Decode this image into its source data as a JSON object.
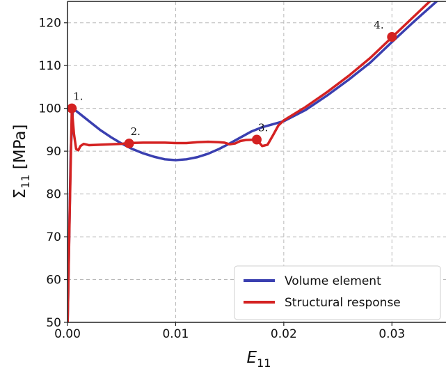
{
  "chart_data": {
    "type": "line",
    "xlabel": "E",
    "xlabel_sub": "11",
    "ylabel": "Σ",
    "ylabel_sub": "11",
    "ylabel_unit": " [MPa]",
    "xlim": [
      0.0,
      0.035
    ],
    "ylim": [
      50,
      125
    ],
    "xticks": [
      0.0,
      0.01,
      0.02,
      0.03
    ],
    "xtick_labels": [
      "0.00",
      "0.01",
      "0.02",
      "0.03"
    ],
    "yticks": [
      50,
      60,
      70,
      80,
      90,
      100,
      110,
      120
    ],
    "ytick_labels": [
      "50",
      "60",
      "70",
      "80",
      "90",
      "100",
      "110",
      "120"
    ],
    "grid": true,
    "legend_position": "lower-right",
    "series": [
      {
        "name": "Volume element",
        "color": "#3a3fb0",
        "x": [
          0.0,
          0.0003,
          0.0005,
          0.001,
          0.002,
          0.003,
          0.004,
          0.005,
          0.006,
          0.007,
          0.008,
          0.009,
          0.01,
          0.011,
          0.012,
          0.013,
          0.014,
          0.015,
          0.016,
          0.017,
          0.018,
          0.019,
          0.02,
          0.022,
          0.024,
          0.026,
          0.028,
          0.03,
          0.032,
          0.034,
          0.035
        ],
        "y": [
          48,
          90,
          100,
          99.0,
          97.0,
          95.0,
          93.3,
          91.8,
          90.5,
          89.5,
          88.7,
          88.1,
          87.9,
          88.1,
          88.6,
          89.4,
          90.5,
          91.8,
          93.2,
          94.6,
          95.6,
          96.3,
          97.0,
          99.6,
          103.0,
          106.7,
          110.7,
          115.5,
          120.2,
          124.7,
          127.0
        ]
      },
      {
        "name": "Structural response",
        "color": "#d42222",
        "x": [
          0.0,
          0.0002,
          0.0004,
          0.0006,
          0.0008,
          0.001,
          0.0012,
          0.0015,
          0.002,
          0.003,
          0.004,
          0.005,
          0.0055,
          0.007,
          0.009,
          0.01,
          0.011,
          0.012,
          0.013,
          0.014,
          0.0145,
          0.015,
          0.0155,
          0.016,
          0.0165,
          0.0175,
          0.018,
          0.0185,
          0.019,
          0.0195,
          0.02,
          0.022,
          0.024,
          0.026,
          0.028,
          0.03,
          0.032,
          0.034,
          0.035
        ],
        "y": [
          48,
          75,
          100,
          94,
          90.5,
          90.2,
          91.2,
          91.7,
          91.4,
          91.5,
          91.6,
          91.7,
          91.9,
          92.0,
          92.0,
          91.9,
          91.9,
          92.1,
          92.2,
          92.1,
          92.0,
          91.6,
          91.8,
          92.4,
          92.6,
          92.7,
          91.2,
          91.5,
          93.7,
          96.0,
          97.2,
          100.3,
          103.8,
          107.6,
          111.8,
          116.6,
          121.4,
          126.2,
          128.5
        ]
      }
    ],
    "markers": {
      "color": "#d42222",
      "points": [
        {
          "label": "1.",
          "x": 0.0004,
          "y": 100.0
        },
        {
          "label": "2.",
          "x": 0.0057,
          "y": 91.8
        },
        {
          "label": "3.",
          "x": 0.0175,
          "y": 92.7
        },
        {
          "label": "4.",
          "x": 0.03,
          "y": 116.7
        }
      ]
    }
  }
}
